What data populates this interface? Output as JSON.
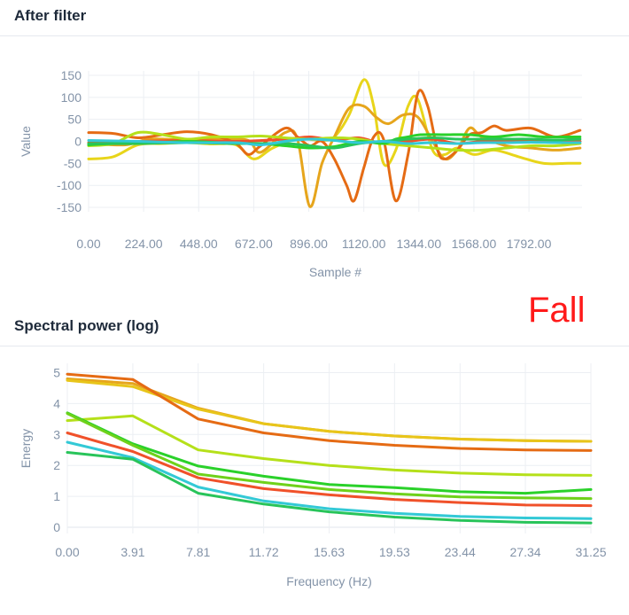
{
  "panels": [
    {
      "title": "After filter"
    },
    {
      "title": "Spectral power (log)"
    }
  ],
  "label": "Fall",
  "chart_data": [
    {
      "type": "line",
      "title": "After filter",
      "xlabel": "Sample #",
      "ylabel": "Value",
      "xlim": [
        0,
        2008
      ],
      "ylim": [
        -160,
        160
      ],
      "x_ticks": [
        0,
        224,
        448,
        672,
        896,
        1120,
        1344,
        1568,
        1792
      ],
      "x_tick_labels": [
        "0.00",
        "224.00",
        "448.00",
        "672.00",
        "896.00",
        "1120.00",
        "1344.00",
        "1568.00",
        "1792.00"
      ],
      "y_ticks": [
        -150,
        -100,
        -50,
        0,
        50,
        100,
        150
      ],
      "grid": true,
      "series": [
        {
          "color": "#e8d51a",
          "points": [
            [
              0,
              -40
            ],
            [
              100,
              -35
            ],
            [
              200,
              -8
            ],
            [
              300,
              -5
            ],
            [
              400,
              -3
            ],
            [
              500,
              -6
            ],
            [
              600,
              -8
            ],
            [
              672,
              -40
            ],
            [
              750,
              -15
            ],
            [
              850,
              5
            ],
            [
              950,
              2
            ],
            [
              1000,
              10
            ],
            [
              1060,
              60
            ],
            [
              1120,
              140
            ],
            [
              1160,
              80
            ],
            [
              1200,
              -50
            ],
            [
              1250,
              -20
            ],
            [
              1300,
              80
            ],
            [
              1340,
              95
            ],
            [
              1400,
              -20
            ],
            [
              1450,
              -30
            ],
            [
              1500,
              -15
            ],
            [
              1570,
              -30
            ],
            [
              1650,
              -20
            ],
            [
              1750,
              -35
            ],
            [
              1850,
              -50
            ],
            [
              1950,
              -50
            ],
            [
              2000,
              -50
            ]
          ]
        },
        {
          "color": "#e6a51c",
          "points": [
            [
              0,
              -5
            ],
            [
              150,
              -8
            ],
            [
              250,
              5
            ],
            [
              400,
              3
            ],
            [
              550,
              5
            ],
            [
              650,
              2
            ],
            [
              700,
              -25
            ],
            [
              800,
              20
            ],
            [
              850,
              5
            ],
            [
              900,
              -148
            ],
            [
              950,
              -50
            ],
            [
              1000,
              10
            ],
            [
              1060,
              75
            ],
            [
              1120,
              80
            ],
            [
              1170,
              55
            ],
            [
              1220,
              40
            ],
            [
              1280,
              60
            ],
            [
              1340,
              55
            ],
            [
              1400,
              0
            ],
            [
              1450,
              -40
            ],
            [
              1500,
              -20
            ],
            [
              1550,
              30
            ],
            [
              1600,
              10
            ],
            [
              1700,
              -10
            ],
            [
              1800,
              -15
            ],
            [
              1900,
              -20
            ],
            [
              2000,
              -15
            ]
          ]
        },
        {
          "color": "#e56b14",
          "points": [
            [
              0,
              20
            ],
            [
              100,
              18
            ],
            [
              200,
              8
            ],
            [
              300,
              15
            ],
            [
              400,
              22
            ],
            [
              500,
              15
            ],
            [
              600,
              -5
            ],
            [
              650,
              -30
            ],
            [
              700,
              -10
            ],
            [
              800,
              30
            ],
            [
              850,
              10
            ],
            [
              900,
              -10
            ],
            [
              950,
              0
            ],
            [
              1000,
              -40
            ],
            [
              1050,
              -100
            ],
            [
              1080,
              -135
            ],
            [
              1120,
              -60
            ],
            [
              1160,
              10
            ],
            [
              1200,
              5
            ],
            [
              1250,
              -135
            ],
            [
              1300,
              -30
            ],
            [
              1340,
              110
            ],
            [
              1380,
              80
            ],
            [
              1420,
              -20
            ],
            [
              1450,
              -40
            ],
            [
              1500,
              -20
            ],
            [
              1550,
              15
            ],
            [
              1600,
              20
            ],
            [
              1650,
              35
            ],
            [
              1700,
              25
            ],
            [
              1800,
              30
            ],
            [
              1900,
              10
            ],
            [
              2000,
              25
            ]
          ]
        },
        {
          "color": "#f0512a",
          "points": [
            [
              0,
              -3
            ],
            [
              200,
              0
            ],
            [
              400,
              2
            ],
            [
              600,
              0
            ],
            [
              800,
              5
            ],
            [
              900,
              10
            ],
            [
              1000,
              3
            ],
            [
              1100,
              8
            ],
            [
              1200,
              -5
            ],
            [
              1300,
              0
            ],
            [
              1400,
              5
            ],
            [
              1500,
              -5
            ],
            [
              1600,
              0
            ],
            [
              1700,
              2
            ],
            [
              1800,
              0
            ],
            [
              1900,
              0
            ],
            [
              2000,
              0
            ]
          ]
        },
        {
          "color": "#b5e01a",
          "points": [
            [
              0,
              -10
            ],
            [
              100,
              -5
            ],
            [
              200,
              20
            ],
            [
              300,
              15
            ],
            [
              400,
              5
            ],
            [
              500,
              10
            ],
            [
              600,
              10
            ],
            [
              700,
              12
            ],
            [
              800,
              8
            ],
            [
              900,
              5
            ],
            [
              1000,
              8
            ],
            [
              1100,
              5
            ],
            [
              1200,
              -5
            ],
            [
              1300,
              -10
            ],
            [
              1400,
              -15
            ],
            [
              1500,
              -20
            ],
            [
              1600,
              -20
            ],
            [
              1700,
              -15
            ],
            [
              1800,
              -10
            ],
            [
              1900,
              -10
            ],
            [
              2000,
              -5
            ]
          ]
        },
        {
          "color": "#2ad12a",
          "points": [
            [
              0,
              -8
            ],
            [
              100,
              -5
            ],
            [
              200,
              -3
            ],
            [
              300,
              -2
            ],
            [
              400,
              0
            ],
            [
              500,
              -2
            ],
            [
              600,
              -5
            ],
            [
              700,
              -5
            ],
            [
              800,
              -10
            ],
            [
              900,
              -15
            ],
            [
              1000,
              -12
            ],
            [
              1100,
              0
            ],
            [
              1200,
              -5
            ],
            [
              1250,
              5
            ],
            [
              1300,
              10
            ],
            [
              1350,
              15
            ],
            [
              1450,
              15
            ],
            [
              1550,
              15
            ],
            [
              1650,
              10
            ],
            [
              1750,
              15
            ],
            [
              1850,
              10
            ],
            [
              1950,
              10
            ],
            [
              2000,
              10
            ]
          ]
        },
        {
          "color": "#28c45a",
          "points": [
            [
              0,
              -5
            ],
            [
              200,
              -5
            ],
            [
              400,
              -3
            ],
            [
              600,
              -5
            ],
            [
              800,
              -5
            ],
            [
              900,
              -10
            ],
            [
              1000,
              -15
            ],
            [
              1100,
              -5
            ],
            [
              1200,
              0
            ],
            [
              1300,
              5
            ],
            [
              1400,
              8
            ],
            [
              1500,
              5
            ],
            [
              1600,
              5
            ],
            [
              1700,
              5
            ],
            [
              1800,
              5
            ],
            [
              1900,
              3
            ],
            [
              2000,
              5
            ]
          ]
        },
        {
          "color": "#33c9d6",
          "points": [
            [
              0,
              2
            ],
            [
              200,
              0
            ],
            [
              400,
              -3
            ],
            [
              600,
              -3
            ],
            [
              700,
              -8
            ],
            [
              800,
              0
            ],
            [
              900,
              5
            ],
            [
              1000,
              2
            ],
            [
              1100,
              -3
            ],
            [
              1200,
              0
            ],
            [
              1300,
              -5
            ],
            [
              1400,
              -3
            ],
            [
              1500,
              -5
            ],
            [
              1600,
              -3
            ],
            [
              1700,
              -3
            ],
            [
              1800,
              -2
            ],
            [
              1900,
              -3
            ],
            [
              2000,
              -3
            ]
          ]
        }
      ]
    },
    {
      "type": "line",
      "title": "Spectral power (log)",
      "xlabel": "Frequency (Hz)",
      "ylabel": "Energy",
      "xlim": [
        0,
        31.25
      ],
      "ylim": [
        -0.2,
        5.3
      ],
      "x_ticks": [
        0,
        3.91,
        7.81,
        11.72,
        15.63,
        19.53,
        23.44,
        27.34,
        31.25
      ],
      "x_tick_labels": [
        "0.00",
        "3.91",
        "7.81",
        "11.72",
        "15.63",
        "19.53",
        "23.44",
        "27.34",
        "31.25"
      ],
      "y_ticks": [
        0,
        1,
        2,
        3,
        4,
        5
      ],
      "grid": true,
      "x": [
        0,
        3.91,
        7.81,
        11.72,
        15.63,
        19.53,
        23.44,
        27.34,
        31.25
      ],
      "series": [
        {
          "color": "#e6a51c",
          "values": [
            4.8,
            4.65,
            3.85,
            3.35,
            3.1,
            2.95,
            2.85,
            2.8,
            2.78
          ]
        },
        {
          "color": "#e8c51a",
          "values": [
            4.75,
            4.55,
            3.82,
            3.35,
            3.1,
            2.95,
            2.85,
            2.8,
            2.78
          ]
        },
        {
          "color": "#e56b14",
          "values": [
            4.95,
            4.78,
            3.5,
            3.05,
            2.8,
            2.65,
            2.55,
            2.5,
            2.48
          ]
        },
        {
          "color": "#b5e01a",
          "values": [
            3.45,
            3.6,
            2.5,
            2.22,
            2.0,
            1.85,
            1.75,
            1.7,
            1.68
          ]
        },
        {
          "color": "#2ad12a",
          "values": [
            3.7,
            2.7,
            1.98,
            1.65,
            1.38,
            1.28,
            1.15,
            1.1,
            1.22
          ]
        },
        {
          "color": "#6fd11a",
          "values": [
            3.68,
            2.65,
            1.72,
            1.45,
            1.22,
            1.08,
            0.98,
            0.95,
            0.93
          ]
        },
        {
          "color": "#f0512a",
          "values": [
            3.05,
            2.45,
            1.6,
            1.25,
            1.05,
            0.9,
            0.8,
            0.72,
            0.7
          ]
        },
        {
          "color": "#33c9d6",
          "values": [
            2.75,
            2.25,
            1.3,
            0.85,
            0.6,
            0.45,
            0.35,
            0.3,
            0.28
          ]
        },
        {
          "color": "#28c45a",
          "values": [
            2.42,
            2.2,
            1.1,
            0.75,
            0.5,
            0.33,
            0.22,
            0.16,
            0.14
          ]
        }
      ]
    }
  ]
}
